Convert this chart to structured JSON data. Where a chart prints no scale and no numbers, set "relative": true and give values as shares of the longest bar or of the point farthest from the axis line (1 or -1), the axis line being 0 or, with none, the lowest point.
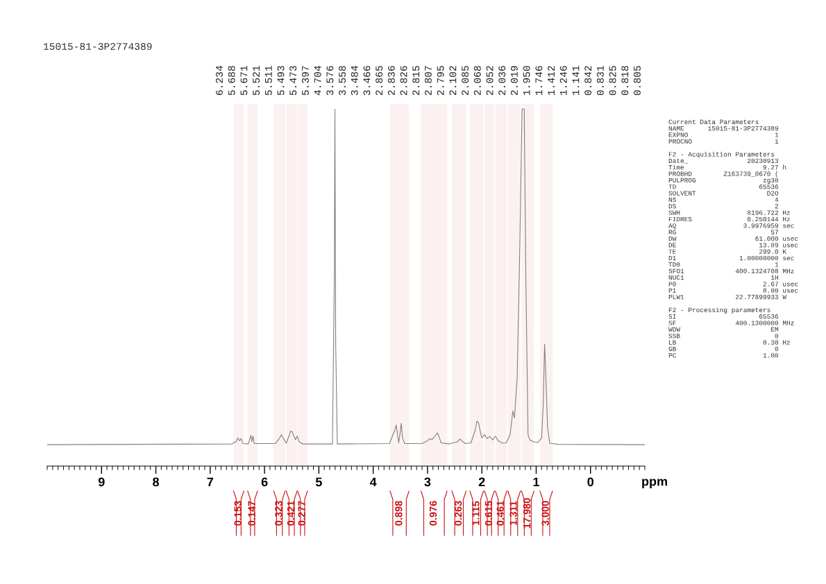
{
  "chart_data": {
    "type": "line",
    "relative": true,
    "xlabel": "ppm",
    "xlim": [
      10.0,
      -1.0
    ],
    "xticks": [
      9,
      8,
      7,
      6,
      5,
      4,
      3,
      2,
      1,
      0
    ],
    "grid": false,
    "legend": false,
    "x": [
      10.0,
      6.6,
      6.52,
      6.49,
      6.46,
      6.43,
      6.4,
      6.3,
      6.25,
      6.235,
      6.21,
      6.19,
      5.8,
      5.72,
      5.69,
      5.66,
      5.6,
      5.54,
      5.52,
      5.49,
      5.47,
      5.43,
      5.4,
      5.36,
      5.3,
      4.75,
      4.715,
      4.704,
      4.69,
      4.66,
      3.7,
      3.6,
      3.576,
      3.53,
      3.5,
      3.484,
      3.46,
      3.42,
      3.1,
      3.0,
      2.96,
      2.92,
      2.88,
      2.85,
      2.82,
      2.8,
      2.75,
      2.6,
      2.45,
      2.4,
      2.36,
      2.3,
      2.2,
      2.12,
      2.09,
      2.06,
      2.03,
      2.0,
      1.95,
      1.9,
      1.85,
      1.8,
      1.75,
      1.7,
      1.62,
      1.55,
      1.48,
      1.43,
      1.4,
      1.35,
      1.3,
      1.26,
      1.22,
      1.19,
      1.15,
      1.12,
      1.05,
      0.97,
      0.9,
      0.87,
      0.845,
      0.83,
      0.81,
      0.79,
      0.75,
      0.6,
      -1.0
    ],
    "series": [
      {
        "color": "#808080",
        "values": [
          0.06,
          0.062,
          0.069,
          0.079,
          0.071,
          0.077,
          0.063,
          0.062,
          0.086,
          0.068,
          0.084,
          0.063,
          0.063,
          0.079,
          0.088,
          0.079,
          0.064,
          0.088,
          0.098,
          0.096,
          0.088,
          0.074,
          0.084,
          0.068,
          0.062,
          0.062,
          0.53,
          1.0,
          0.342,
          0.062,
          0.063,
          0.102,
          0.115,
          0.065,
          0.098,
          0.12,
          0.079,
          0.063,
          0.063,
          0.071,
          0.077,
          0.074,
          0.081,
          0.086,
          0.093,
          0.088,
          0.065,
          0.062,
          0.068,
          0.076,
          0.069,
          0.063,
          0.065,
          0.102,
          0.126,
          0.121,
          0.098,
          0.079,
          0.088,
          0.077,
          0.083,
          0.073,
          0.084,
          0.071,
          0.064,
          0.065,
          0.088,
          0.154,
          0.135,
          0.248,
          0.624,
          1.0,
          1.0,
          0.53,
          0.088,
          0.074,
          0.068,
          0.066,
          0.079,
          0.173,
          0.342,
          0.286,
          0.201,
          0.107,
          0.064,
          0.061,
          0.06
        ]
      }
    ],
    "annotations": [
      "15015-81-3P2774389",
      "Current Data Parameters\nNAME      15015-81-3P2774389\nEXPNO                      1\nPROCNO                     1\n\nF2 - Acquisition Parameters\nDate_               20230913\nTime                    9.27 h\nPROBHD        Z163739_0670 (\nPULPROG                 zg30\nTD                     65536\nSOLVENT                  D2O\nNS                         4\nDS                         2\nSWH                 8196.722 Hz\nFIDRES              0.250144 Hz\nAQ                 3.9976959 sec\nRG                        57\nDW                    61.000 usec\nDE                     13.89 usec\nTE                     299.0 K\nD1                1.00000000 sec\nTD0                        1\nSFO1             400.1324708 MHz\nNUC1                      1H\nP0                      2.67 usec\nP1                      8.00 usec\nPLW1             22.77899933 W\n\nF2 - Processing parameters\nSI                     65536\nSF               400.1300000 MHz\nWDW                       EM\nSSB                        0\nLB                      0.30 Hz\nGB                         0\nPC                      1.00",
      "6.234",
      "5.688",
      "5.671",
      "5.521",
      "5.511",
      "5.493",
      "5.473",
      "5.397",
      "4.704",
      "3.576",
      "3.558",
      "3.484",
      "3.466",
      "2.865",
      "2.836",
      "2.826",
      "2.815",
      "2.807",
      "2.795",
      "2.102",
      "2.085",
      "2.068",
      "2.052",
      "2.036",
      "2.019",
      "1.950",
      "1.746",
      "1.412",
      "1.246",
      "1.141",
      "0.842",
      "0.831",
      "0.825",
      "0.818",
      "0.805"
    ],
    "bands": [
      {
        "axis": "x",
        "from": 6.57,
        "to": 6.38,
        "label": "0.153",
        "color": "#cc1111"
      },
      {
        "axis": "x",
        "from": 6.31,
        "to": 6.13,
        "label": "0.147",
        "color": "#cc1111"
      },
      {
        "axis": "x",
        "from": 5.83,
        "to": 5.62,
        "label": "0.323",
        "color": "#cc1111"
      },
      {
        "axis": "x",
        "from": 5.6,
        "to": 5.4,
        "label": "0.421",
        "color": "#cc1111"
      },
      {
        "axis": "x",
        "from": 5.39,
        "to": 5.21,
        "label": "0.277",
        "color": "#cc1111"
      },
      {
        "axis": "x",
        "from": 3.69,
        "to": 3.34,
        "label": "0.898",
        "color": "#cc1111"
      },
      {
        "axis": "x",
        "from": 3.12,
        "to": 2.64,
        "label": "0.976",
        "color": "#cc1111"
      },
      {
        "axis": "x",
        "from": 2.55,
        "to": 2.29,
        "label": "0.263",
        "color": "#cc1111"
      },
      {
        "axis": "x",
        "from": 2.22,
        "to": 1.97,
        "label": "1.115",
        "color": "#cc1111"
      },
      {
        "axis": "x",
        "from": 1.95,
        "to": 1.77,
        "label": "0.615",
        "color": "#cc1111"
      },
      {
        "axis": "x",
        "from": 1.75,
        "to": 1.54,
        "label": "0.461",
        "color": "#cc1111"
      },
      {
        "axis": "x",
        "from": 1.52,
        "to": 1.29,
        "label": "1.311",
        "color": "#cc1111"
      },
      {
        "axis": "x",
        "from": 1.27,
        "to": 1.04,
        "label": "17.980",
        "color": "#cc1111"
      },
      {
        "axis": "x",
        "from": 0.93,
        "to": 0.7,
        "label": "3.000",
        "color": "#cc1111"
      }
    ]
  }
}
